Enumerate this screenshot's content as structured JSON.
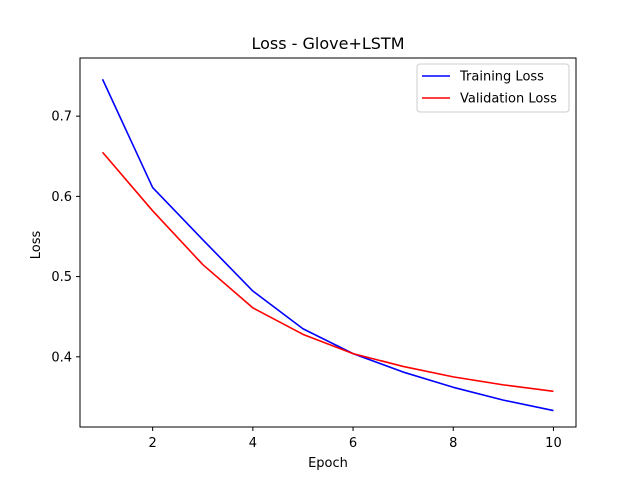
{
  "chart_data": {
    "type": "line",
    "title": "Loss - Glove+LSTM",
    "xlabel": "Epoch",
    "ylabel": "Loss",
    "xlim": [
      0.55,
      10.45
    ],
    "ylim": [
      0.3125,
      0.7725
    ],
    "xticks": [
      2,
      4,
      6,
      8,
      10
    ],
    "xtick_labels": [
      "2",
      "4",
      "6",
      "8",
      "10"
    ],
    "yticks": [
      0.4,
      0.5,
      0.6,
      0.7
    ],
    "ytick_labels": [
      "0.4",
      "0.5",
      "0.6",
      "0.7"
    ],
    "grid": false,
    "legend_position": "top-right",
    "x": [
      1,
      2,
      3,
      4,
      5,
      6,
      7,
      8,
      9,
      10
    ],
    "series": [
      {
        "name": "Training Loss",
        "color": "#0000ff",
        "values": [
          0.746,
          0.611,
          0.546,
          0.482,
          0.435,
          0.404,
          0.381,
          0.362,
          0.346,
          0.333
        ]
      },
      {
        "name": "Validation Loss",
        "color": "#ff0000",
        "values": [
          0.655,
          0.582,
          0.515,
          0.461,
          0.428,
          0.404,
          0.388,
          0.375,
          0.365,
          0.357
        ]
      }
    ]
  }
}
